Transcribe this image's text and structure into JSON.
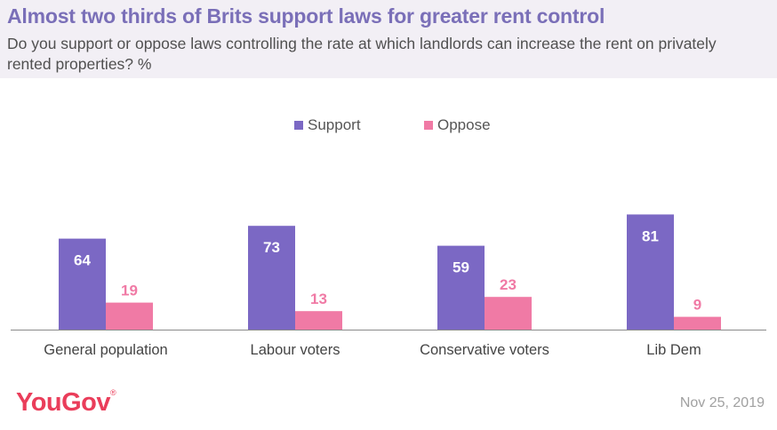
{
  "header": {
    "title": "Almost two thirds of Brits support laws for greater rent control",
    "subtitle": "Do you support or oppose laws controlling the rate at which landlords can increase the rent on privately rented properties? %"
  },
  "footer": {
    "brand": "YouGov",
    "brand_mark": "®",
    "date": "Nov 25, 2019"
  },
  "colors": {
    "support": "#7b68c4",
    "oppose": "#f07aa5",
    "title": "#7a6fb8",
    "header_bg": "#f2eff5",
    "brand": "#ea3d5a"
  },
  "chart_data": {
    "type": "bar",
    "title": "Almost two thirds of Brits support laws for greater rent control",
    "categories": [
      "General population",
      "Labour voters",
      "Conservative voters",
      "Lib Dem"
    ],
    "series": [
      {
        "name": "Support",
        "values": [
          64,
          73,
          59,
          81
        ]
      },
      {
        "name": "Oppose",
        "values": [
          19,
          13,
          23,
          9
        ]
      }
    ],
    "ylim": [
      0,
      100
    ],
    "grid": false,
    "legend": "top-center",
    "xlabel": "",
    "ylabel": ""
  }
}
